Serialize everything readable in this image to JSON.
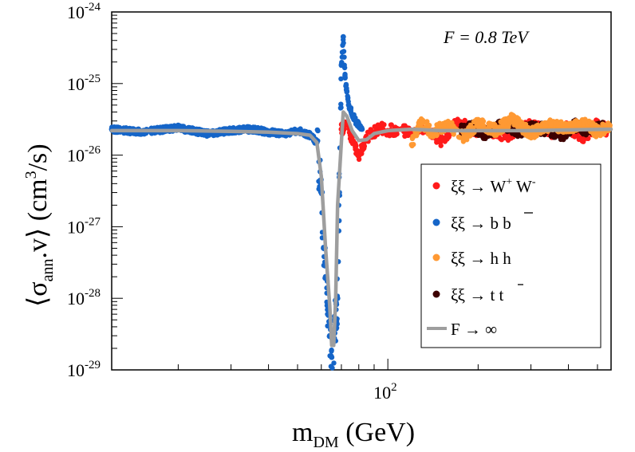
{
  "chart_data": {
    "type": "scatter",
    "xlabel": {
      "main": "m",
      "sub": "DM",
      "unit": " (GeV)"
    },
    "ylabel": {
      "open": "⟨σ",
      "sub": "ann",
      "mid": ".v⟩ (cm",
      "sup": "3",
      "close": "/s)"
    },
    "xscale": "log",
    "yscale": "log",
    "xlim": [
      12,
      555
    ],
    "ylim": [
      1e-29,
      1e-24
    ],
    "x_ticks": [
      {
        "value": 100,
        "base": "10",
        "exp": "2"
      }
    ],
    "y_ticks": [
      {
        "value": 1e-29,
        "base": "10",
        "exp": "-29"
      },
      {
        "value": 1e-28,
        "base": "10",
        "exp": "-28"
      },
      {
        "value": 1e-27,
        "base": "10",
        "exp": "-27"
      },
      {
        "value": 1e-26,
        "base": "10",
        "exp": "-26"
      },
      {
        "value": 1e-25,
        "base": "10",
        "exp": "-25"
      },
      {
        "value": 1e-24,
        "base": "10",
        "exp": "-24"
      }
    ],
    "annotation": "F = 0.8 TeV",
    "legend_position": "bottom-right",
    "series": [
      {
        "name": "WW",
        "color": "#ff1a1a",
        "label": {
          "pre": "ξξ → W",
          "sup1": "+",
          "mid": " W",
          "sup2": "-"
        },
        "points": [
          [
            70,
            2.3e-26
          ],
          [
            72,
            2.6e-26
          ],
          [
            75,
            1.9e-26
          ],
          [
            78,
            1.3e-26
          ],
          [
            80,
            1e-26
          ],
          [
            82,
            1.3e-26
          ],
          [
            85,
            1.8e-26
          ],
          [
            90,
            2.1e-26
          ],
          [
            95,
            2.4e-26
          ],
          [
            100,
            2.2e-26
          ],
          [
            110,
            2.3e-26
          ],
          [
            120,
            2e-26
          ],
          [
            130,
            2.5e-26
          ],
          [
            150,
            1.6e-26
          ],
          [
            170,
            2.8e-26
          ],
          [
            200,
            2.2e-26
          ],
          [
            250,
            1.9e-26
          ],
          [
            300,
            2.6e-26
          ],
          [
            350,
            2.1e-26
          ],
          [
            400,
            2.4e-26
          ],
          [
            450,
            1.8e-26
          ],
          [
            500,
            2.7e-26
          ],
          [
            540,
            2.2e-26
          ]
        ]
      },
      {
        "name": "bb",
        "color": "#1565c8",
        "label": {
          "pre": "ξξ → b b",
          "overline": "b"
        },
        "points": [
          [
            12,
            2.3e-26
          ],
          [
            15,
            2.1e-26
          ],
          [
            20,
            2.4e-26
          ],
          [
            25,
            2e-26
          ],
          [
            30,
            2.2e-26
          ],
          [
            35,
            2.3e-26
          ],
          [
            40,
            2.1e-26
          ],
          [
            45,
            2e-26
          ],
          [
            50,
            2.2e-26
          ],
          [
            55,
            1.9e-26
          ],
          [
            58,
            1.5e-26
          ],
          [
            60,
            3e-27
          ],
          [
            61,
            5e-28
          ],
          [
            62,
            2e-28
          ],
          [
            63,
            6e-29
          ],
          [
            64,
            3e-29
          ],
          [
            65,
            1.5e-29
          ],
          [
            66,
            2.5e-29
          ],
          [
            68,
            1e-28
          ],
          [
            70,
            1.8e-25
          ],
          [
            71,
            4.5e-25
          ],
          [
            72,
            1.2e-25
          ],
          [
            74,
            5e-26
          ],
          [
            78,
            3e-26
          ],
          [
            82,
            2.3e-26
          ]
        ]
      },
      {
        "name": "hh",
        "color": "#ff9933",
        "label": {
          "pre": "ξξ → h h"
        },
        "points": [
          [
            120,
            1.4e-26
          ],
          [
            125,
            2.3e-26
          ],
          [
            130,
            2.9e-26
          ],
          [
            140,
            2.1e-26
          ],
          [
            160,
            2.6e-26
          ],
          [
            180,
            1.8e-26
          ],
          [
            200,
            2.8e-26
          ],
          [
            230,
            2.2e-26
          ],
          [
            260,
            3.2e-26
          ],
          [
            300,
            2e-26
          ],
          [
            350,
            2.7e-26
          ],
          [
            400,
            2.3e-26
          ],
          [
            450,
            2.9e-26
          ],
          [
            500,
            2.1e-26
          ],
          [
            550,
            2.6e-26
          ]
        ]
      },
      {
        "name": "tt",
        "color": "#3d0000",
        "label": {
          "pre": "ξξ → t t",
          "overline": "t"
        },
        "points": [
          [
            175,
            2.2e-26
          ],
          [
            190,
            2.5e-26
          ],
          [
            210,
            2e-26
          ],
          [
            240,
            2.6e-26
          ],
          [
            270,
            2.1e-26
          ],
          [
            300,
            2.4e-26
          ],
          [
            340,
            2.3e-26
          ],
          [
            380,
            1.9e-26
          ],
          [
            420,
            2.6e-26
          ],
          [
            470,
            2.2e-26
          ],
          [
            520,
            2.4e-26
          ]
        ]
      }
    ],
    "line": {
      "name": "F → ∞",
      "color": "#9e9e9e",
      "points": [
        [
          12,
          2.2e-26
        ],
        [
          20,
          2.2e-26
        ],
        [
          30,
          2.15e-26
        ],
        [
          40,
          2.1e-26
        ],
        [
          50,
          2e-26
        ],
        [
          55,
          1.9e-26
        ],
        [
          58,
          1.5e-26
        ],
        [
          60,
          5e-27
        ],
        [
          62,
          5e-28
        ],
        [
          64,
          8e-29
        ],
        [
          65,
          2.2e-29
        ],
        [
          66,
          2.2e-29
        ],
        [
          67,
          1e-28
        ],
        [
          68,
          2e-27
        ],
        [
          70,
          1.5e-26
        ],
        [
          71,
          4e-26
        ],
        [
          73,
          3.5e-26
        ],
        [
          76,
          2.2e-26
        ],
        [
          80,
          1.6e-26
        ],
        [
          85,
          1.65e-26
        ],
        [
          90,
          2e-26
        ],
        [
          100,
          2.2e-26
        ],
        [
          120,
          2.3e-26
        ],
        [
          150,
          2.2e-26
        ],
        [
          200,
          2.2e-26
        ],
        [
          300,
          2.2e-26
        ],
        [
          400,
          2.25e-26
        ],
        [
          555,
          2.3e-26
        ]
      ]
    }
  }
}
